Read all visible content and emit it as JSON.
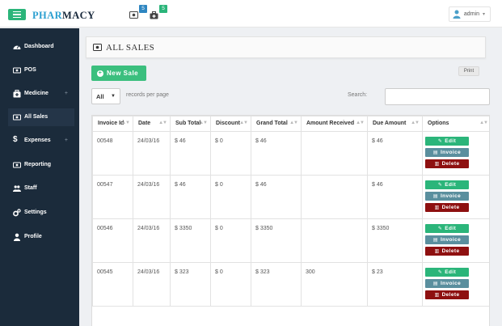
{
  "brand": {
    "part1": "PHAR",
    "part2": "MACY"
  },
  "notifications": [
    {
      "icon": "money-icon",
      "count": "5"
    },
    {
      "icon": "medkit-icon",
      "count": "5"
    }
  ],
  "user": {
    "name": "admin"
  },
  "sidebar": {
    "items": [
      {
        "label": "Dashboard",
        "icon": "dashboard-icon",
        "has_plus": false
      },
      {
        "label": "POS",
        "icon": "money-icon",
        "has_plus": false
      },
      {
        "label": "Medicine",
        "icon": "medkit-icon",
        "has_plus": true,
        "plus": "+"
      },
      {
        "label": "All Sales",
        "icon": "money-icon",
        "has_plus": false,
        "active": true
      },
      {
        "label": "Expenses",
        "icon": "dollar-icon",
        "has_plus": true,
        "plus": "+"
      },
      {
        "label": "Reporting",
        "icon": "money-icon",
        "has_plus": false
      },
      {
        "label": "Staff",
        "icon": "users-icon",
        "has_plus": false
      },
      {
        "label": "Settings",
        "icon": "cogs-icon",
        "has_plus": false
      },
      {
        "label": "Profile",
        "icon": "user-icon",
        "has_plus": false
      }
    ]
  },
  "page": {
    "title": "ALL SALES"
  },
  "toolbar": {
    "new_sale_label": "New Sale",
    "print_label": "Print",
    "length_value": "All",
    "length_suffix": "records per page",
    "search_label": "Search:",
    "search_value": ""
  },
  "table": {
    "columns": [
      "Invoice Id",
      "Date",
      "Sub Total",
      "Discount",
      "Grand Total",
      "Amount Received",
      "Due Amount",
      "Options"
    ],
    "rows": [
      [
        "00548",
        "24/03/16",
        "$ 46",
        "$ 0",
        "$ 46",
        "",
        "$ 46"
      ],
      [
        "00547",
        "24/03/16",
        "$ 46",
        "$ 0",
        "$ 46",
        "",
        "$ 46"
      ],
      [
        "00546",
        "24/03/16",
        "$ 3350",
        "$ 0",
        "$ 3350",
        "",
        "$ 3350"
      ],
      [
        "00545",
        "24/03/16",
        "$ 323",
        "$ 0",
        "$ 323",
        "300",
        "$ 23"
      ]
    ],
    "options": {
      "edit": "Edit",
      "invoice": "Invoice",
      "delete": "Delete"
    }
  },
  "colors": {
    "sidebar": "#1b2b3b",
    "accent_green": "#2bb57a",
    "invoice_blue": "#5a8f9e",
    "delete_red": "#8e1010",
    "brand_blue": "#2a9fd0"
  }
}
